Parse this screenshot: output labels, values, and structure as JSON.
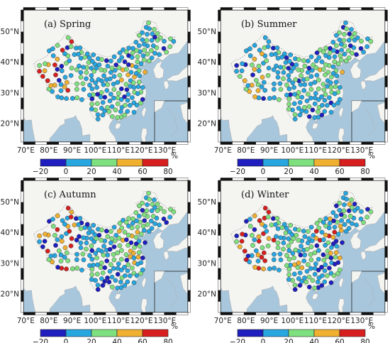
{
  "colors": {
    "land": "#f4f4f1",
    "sea": "#a9c7dc",
    "border": "#a8a8a8",
    "frame": "#111111",
    "bins": [
      "#1f1fbf",
      "#27a6e0",
      "#7fe07f",
      "#f0b030",
      "#d81f1f"
    ]
  },
  "axis": {
    "lon_ticks": [
      "70°E",
      "80°E",
      "90°E",
      "100°E",
      "110°E",
      "120°E",
      "130°E"
    ],
    "lat_ticks": [
      "50°N",
      "40°N",
      "30°N",
      "20°N"
    ]
  },
  "colorbar": {
    "ticks": [
      "−20",
      "0",
      "20",
      "40",
      "60",
      "80"
    ],
    "unit": "%"
  },
  "panels": [
    {
      "title": "(a) Spring",
      "bias": {
        "west": 2.2,
        "south": 0.55,
        "east": 1.4,
        "ne": 1.0
      }
    },
    {
      "title": "(b) Summer",
      "bias": {
        "west": 1.2,
        "south": 0.35,
        "east": 0.9,
        "ne": 0.9
      }
    },
    {
      "title": "(c) Autumn",
      "bias": {
        "west": 2.0,
        "south": 0.8,
        "east": 1.6,
        "ne": 1.2
      }
    },
    {
      "title": "(d) Winter",
      "bias": {
        "west": 2.4,
        "south": 1.7,
        "east": 2.6,
        "ne": 2.0
      }
    }
  ]
}
